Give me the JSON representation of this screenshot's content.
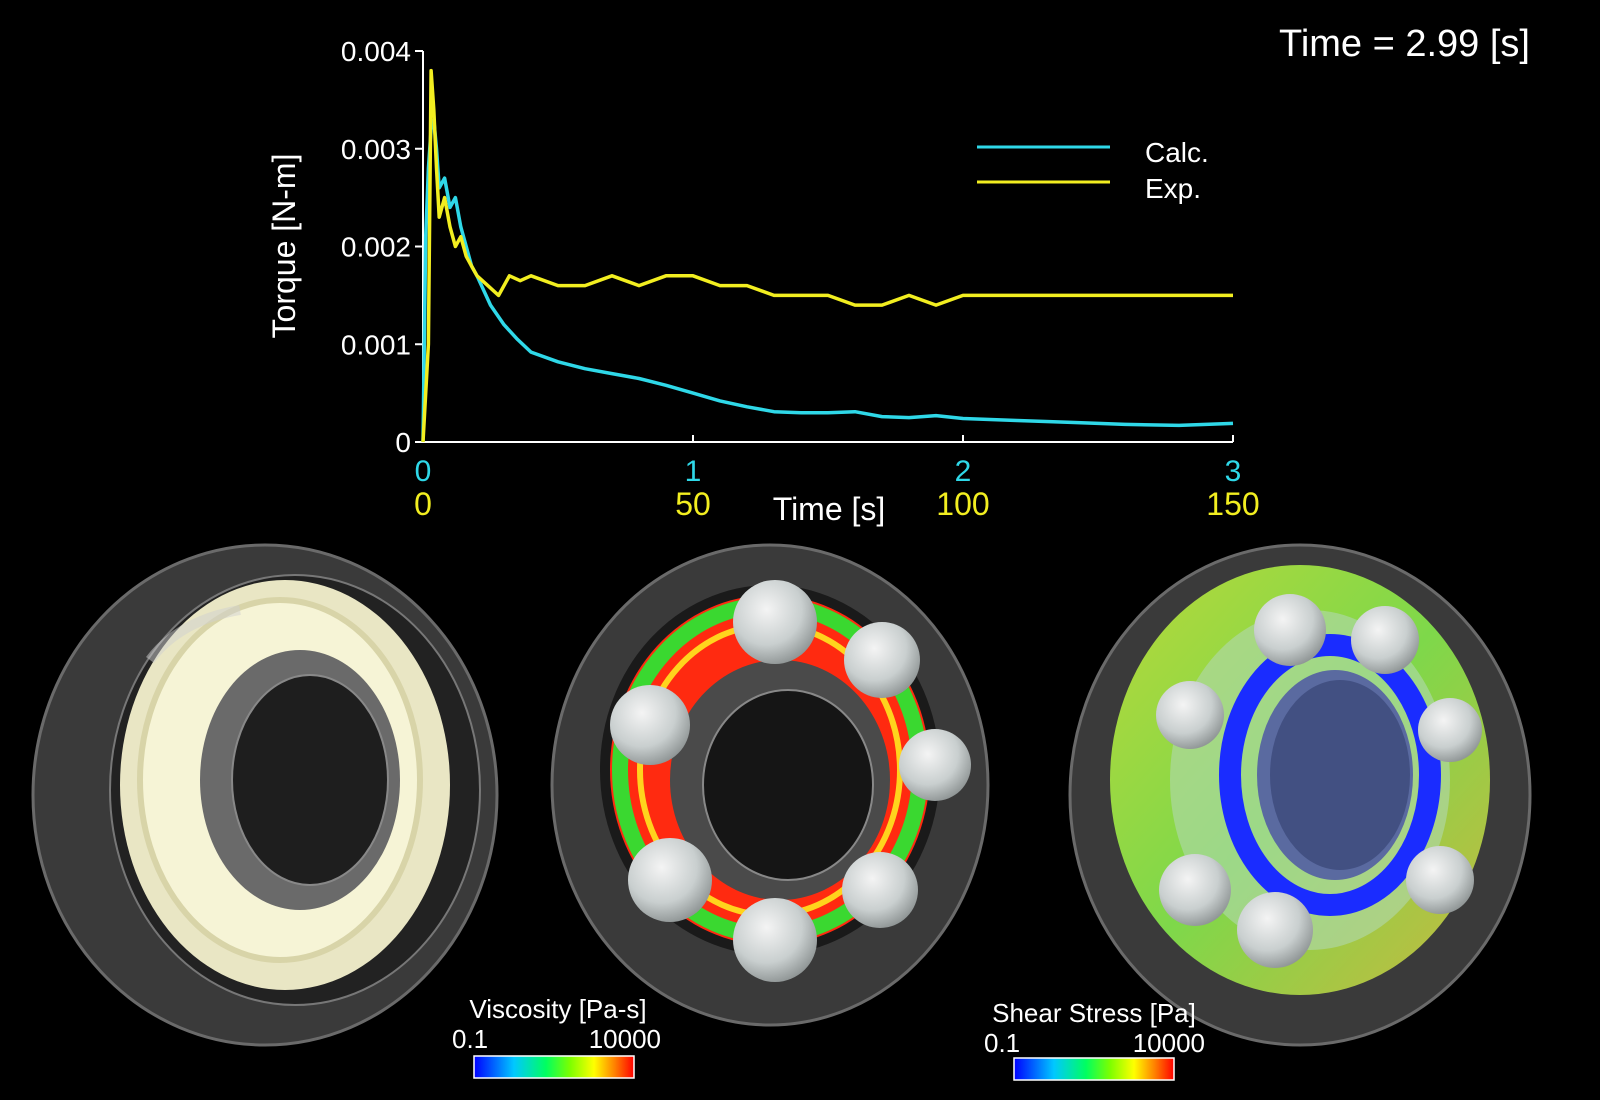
{
  "time_readout": "Time = 2.99 [s]",
  "chart_data": {
    "type": "line",
    "title": "",
    "xlabel": "Time [s]",
    "ylabel": "Torque [N-m]",
    "ylim": [
      0,
      0.004
    ],
    "y_ticks": [
      0,
      0.001,
      0.002,
      0.003,
      0.004
    ],
    "y_tick_labels": [
      "0",
      "0.001",
      "0.002",
      "0.003",
      "0.004"
    ],
    "x_axis_calc": {
      "range": [
        0,
        3
      ],
      "ticks": [
        0,
        1,
        2,
        3
      ],
      "labels": [
        "0",
        "1",
        "2",
        "3"
      ],
      "color": "#2fd8e8"
    },
    "x_axis_exp": {
      "range": [
        0,
        150
      ],
      "ticks": [
        0,
        50,
        100,
        150
      ],
      "labels": [
        "0",
        "50",
        "100",
        "150"
      ],
      "color": "#f2ee20"
    },
    "grid": false,
    "legend_position": "top-right",
    "series": [
      {
        "name": "Calc.",
        "color": "#2fd8e8",
        "x": [
          0,
          0.01,
          0.02,
          0.03,
          0.04,
          0.05,
          0.06,
          0.08,
          0.1,
          0.12,
          0.14,
          0.16,
          0.18,
          0.2,
          0.25,
          0.3,
          0.35,
          0.4,
          0.5,
          0.6,
          0.7,
          0.8,
          0.9,
          1.0,
          1.1,
          1.2,
          1.3,
          1.4,
          1.5,
          1.6,
          1.7,
          1.8,
          1.9,
          2.0,
          2.2,
          2.4,
          2.6,
          2.8,
          3.0
        ],
        "y": [
          0.0,
          0.0021,
          0.0028,
          0.0032,
          0.0033,
          0.003,
          0.0026,
          0.0027,
          0.0024,
          0.0025,
          0.0022,
          0.002,
          0.0018,
          0.0017,
          0.0014,
          0.0012,
          0.00105,
          0.00092,
          0.00082,
          0.00075,
          0.0007,
          0.00065,
          0.00058,
          0.0005,
          0.00042,
          0.00036,
          0.00031,
          0.0003,
          0.0003,
          0.00031,
          0.00026,
          0.00025,
          0.00027,
          0.00024,
          0.00022,
          0.0002,
          0.00018,
          0.00017,
          0.00019
        ]
      },
      {
        "name": "Exp.",
        "color": "#f2ee20",
        "x": [
          0,
          1,
          1.5,
          2,
          2.5,
          3,
          4,
          5,
          6,
          7,
          8,
          9,
          10,
          12,
          14,
          16,
          18,
          20,
          25,
          30,
          35,
          40,
          45,
          50,
          55,
          60,
          65,
          70,
          75,
          80,
          85,
          90,
          95,
          100,
          110,
          120,
          130,
          140,
          150
        ],
        "y": [
          0.0,
          0.001,
          0.0038,
          0.0034,
          0.0028,
          0.0023,
          0.0025,
          0.0022,
          0.002,
          0.0021,
          0.0019,
          0.0018,
          0.0017,
          0.0016,
          0.0015,
          0.0017,
          0.00165,
          0.0017,
          0.0016,
          0.0016,
          0.0017,
          0.0016,
          0.0017,
          0.0017,
          0.0016,
          0.0016,
          0.0015,
          0.0015,
          0.0015,
          0.0014,
          0.0014,
          0.0015,
          0.0014,
          0.0015,
          0.0015,
          0.0015,
          0.0015,
          0.0015,
          0.0015
        ]
      }
    ]
  },
  "colorbars": [
    {
      "label": "Viscosity [Pa-s]",
      "min": "0.1",
      "max": "10000"
    },
    {
      "label": "Shear Stress [Pa]",
      "min": "0.1",
      "max": "10000"
    }
  ]
}
